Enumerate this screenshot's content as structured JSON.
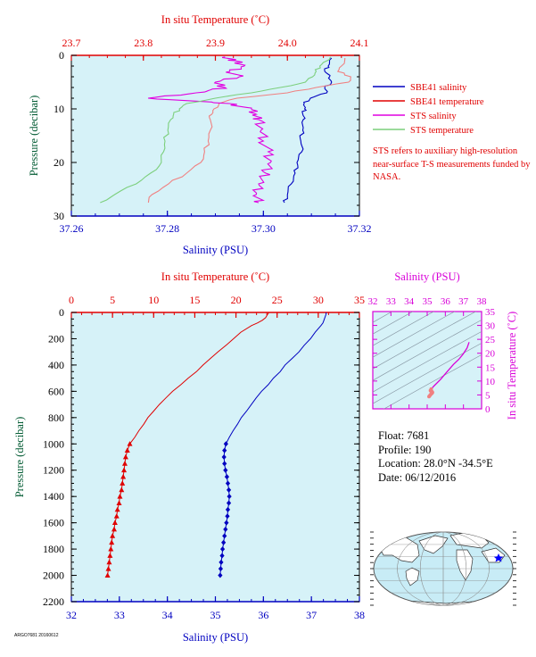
{
  "colors": {
    "temperature_red": "#e00000",
    "salinity_blue": "#0000c0",
    "salinity_magenta": "#d800d8",
    "pressure_green": "#005a32",
    "sts_salinity": "#e000e0",
    "sts_temperature": "#7ccf7c",
    "sbe_temperature_light": "#f08080",
    "plot_bg": "#d6f2f8"
  },
  "float_info": {
    "float": "Float:  7681",
    "profile": "Profile:  190",
    "location": "Location:  28.0°N  -34.5°E",
    "date": "Date:  06/12/2016"
  },
  "notice": "STS refers to auxiliary high-resolution near-surface T-S measurements funded by NASA.",
  "footer": "ARGO7681 20160612",
  "chart_data": [
    {
      "type": "line",
      "x_axis_bottom": {
        "label": "Salinity (PSU)",
        "range": [
          37.26,
          37.32
        ],
        "ticks": [
          "37.26",
          "37.28",
          "37.30",
          "37.32"
        ]
      },
      "x_axis_top": {
        "label": "In situ Temperature (˚C)",
        "range": [
          23.7,
          24.1
        ],
        "ticks": [
          "23.7",
          "23.8",
          "23.9",
          "24.0",
          "24.1"
        ]
      },
      "y_axis": {
        "label": "Pressure (decibar)",
        "range": [
          0,
          30
        ],
        "ticks": [
          "0",
          "10",
          "20",
          "30"
        ],
        "inverted": true
      },
      "legend": [
        {
          "label": "SBE41 salinity",
          "color": "#0000c0"
        },
        {
          "label": "SBE41 temperature",
          "color": "#e00000"
        },
        {
          "label": "STS salinity",
          "color": "#e000e0"
        },
        {
          "label": "STS temperature",
          "color": "#7ccf7c"
        }
      ],
      "legend_position": "right",
      "series": [
        {
          "name": "SBE41 salinity",
          "axis": "salinity",
          "pressure": [
            0.5,
            2,
            3,
            4,
            5,
            6,
            7,
            8,
            9,
            10,
            11,
            12,
            14,
            16,
            18,
            20,
            22,
            24,
            26,
            27.5
          ],
          "values": [
            37.3142,
            37.3135,
            37.3128,
            37.3138,
            37.3142,
            37.3128,
            37.3132,
            37.3098,
            37.3085,
            37.3086,
            37.3082,
            37.3083,
            37.3082,
            37.3078,
            37.308,
            37.307,
            37.3066,
            37.3058,
            37.305,
            37.3044
          ]
        },
        {
          "name": "SBE41 temperature",
          "axis": "temperature",
          "pressure": [
            0.5,
            2,
            3,
            4,
            5,
            6,
            7,
            8,
            9,
            10,
            11,
            12,
            14,
            16,
            18,
            20,
            22,
            24,
            26,
            27.5
          ],
          "values": [
            24.08,
            24.075,
            24.07,
            24.088,
            24.085,
            24.04,
            24.0,
            23.93,
            23.905,
            23.898,
            23.895,
            23.893,
            23.893,
            23.89,
            23.885,
            23.88,
            23.86,
            23.835,
            23.812,
            23.807
          ]
        },
        {
          "name": "STS salinity",
          "axis": "salinity",
          "pressure": [
            0.3,
            1,
            2,
            3,
            4,
            5,
            6,
            7,
            8,
            9,
            10,
            11,
            12,
            14,
            16,
            18,
            20,
            22,
            24,
            26,
            27.5
          ],
          "values": [
            37.292,
            37.294,
            37.296,
            37.293,
            37.295,
            37.29,
            37.292,
            37.286,
            37.276,
            37.293,
            37.2975,
            37.2985,
            37.299,
            37.2995,
            37.3,
            37.301,
            37.3015,
            37.3005,
            37.299,
            37.2985,
            37.299
          ]
        },
        {
          "name": "STS temperature",
          "axis": "temperature",
          "pressure": [
            0.3,
            1,
            2,
            3,
            4,
            5,
            6,
            7,
            8,
            9,
            10,
            11,
            12,
            14,
            16,
            18,
            20,
            22,
            24,
            26,
            27.5
          ],
          "values": [
            24.06,
            24.055,
            24.045,
            24.04,
            24.035,
            24.025,
            23.99,
            23.95,
            23.9,
            23.86,
            23.85,
            23.842,
            23.838,
            23.834,
            23.83,
            23.828,
            23.825,
            23.81,
            23.79,
            23.76,
            23.74
          ]
        }
      ]
    },
    {
      "type": "line",
      "x_axis_bottom": {
        "label": "Salinity (PSU)",
        "range": [
          32,
          38
        ],
        "ticks": [
          "32",
          "33",
          "34",
          "35",
          "36",
          "37",
          "38"
        ]
      },
      "x_axis_top": {
        "label": "In situ Temperature (˚C)",
        "range": [
          0,
          35
        ],
        "ticks": [
          "0",
          "5",
          "10",
          "15",
          "20",
          "25",
          "30",
          "35"
        ]
      },
      "y_axis": {
        "label": "Pressure (decibar)",
        "range": [
          0,
          2200
        ],
        "ticks": [
          "0",
          "200",
          "400",
          "600",
          "800",
          "1000",
          "1200",
          "1400",
          "1600",
          "1800",
          "2000",
          "2200"
        ],
        "inverted": true
      },
      "series": [
        {
          "name": "Salinity",
          "axis": "salinity",
          "marker": "diamond",
          "pressure": [
            0,
            20,
            40,
            60,
            80,
            100,
            150,
            200,
            250,
            300,
            350,
            400,
            450,
            500,
            550,
            600,
            650,
            700,
            750,
            800,
            850,
            900,
            950,
            1000,
            1050,
            1100,
            1150,
            1200,
            1250,
            1300,
            1350,
            1400,
            1450,
            1500,
            1550,
            1600,
            1650,
            1700,
            1750,
            1800,
            1850,
            1900,
            1950,
            2000
          ],
          "values": [
            37.31,
            37.3,
            37.28,
            37.26,
            37.24,
            37.2,
            37.08,
            36.98,
            36.85,
            36.74,
            36.6,
            36.45,
            36.35,
            36.21,
            36.1,
            35.96,
            35.85,
            35.75,
            35.65,
            35.54,
            35.46,
            35.37,
            35.29,
            35.22,
            35.19,
            35.18,
            35.19,
            35.21,
            35.24,
            35.26,
            35.28,
            35.29,
            35.28,
            35.26,
            35.25,
            35.23,
            35.21,
            35.19,
            35.17,
            35.15,
            35.14,
            35.12,
            35.11,
            35.1
          ],
          "markers_from_pressure": 1000
        },
        {
          "name": "Temperature",
          "axis": "temperature",
          "marker": "triangle",
          "pressure": [
            0,
            20,
            40,
            60,
            80,
            100,
            150,
            200,
            250,
            300,
            350,
            400,
            450,
            500,
            550,
            600,
            650,
            700,
            750,
            800,
            850,
            900,
            950,
            1000,
            1050,
            1100,
            1150,
            1200,
            1250,
            1300,
            1350,
            1400,
            1450,
            1500,
            1550,
            1600,
            1650,
            1700,
            1750,
            1800,
            1850,
            1900,
            1950,
            2000
          ],
          "values": [
            24.0,
            23.8,
            23.6,
            23.2,
            22.6,
            21.9,
            20.6,
            19.7,
            18.8,
            17.8,
            16.9,
            16.0,
            15.2,
            14.2,
            13.3,
            12.3,
            11.5,
            10.7,
            10.0,
            9.3,
            8.8,
            8.2,
            7.7,
            7.1,
            6.8,
            6.6,
            6.5,
            6.4,
            6.3,
            6.2,
            6.1,
            5.9,
            5.8,
            5.6,
            5.5,
            5.3,
            5.2,
            5.0,
            4.9,
            4.8,
            4.7,
            4.6,
            4.5,
            4.4
          ],
          "markers_from_pressure": 1000
        }
      ]
    },
    {
      "type": "scatter",
      "x_axis_top": {
        "label": "Salinity (PSU)",
        "range": [
          32,
          38
        ],
        "ticks": [
          "32",
          "33",
          "34",
          "35",
          "36",
          "37",
          "38"
        ]
      },
      "y_axis_right": {
        "label": "In situ Temperature (˚C)",
        "range": [
          0,
          35
        ],
        "ticks": [
          "0",
          "5",
          "10",
          "15",
          "20",
          "25",
          "30",
          "35"
        ]
      },
      "series": [
        {
          "name": "T-S curve",
          "x": [
            37.31,
            37.2,
            36.98,
            36.74,
            36.45,
            36.21,
            35.96,
            35.75,
            35.54,
            35.37,
            35.22,
            35.18,
            35.21,
            35.26,
            35.29,
            35.26,
            35.21,
            35.15,
            35.1
          ],
          "y": [
            24.0,
            21.9,
            19.7,
            17.8,
            16.0,
            14.2,
            12.3,
            10.7,
            9.3,
            8.2,
            7.1,
            6.6,
            6.4,
            6.2,
            5.9,
            5.6,
            5.3,
            4.8,
            4.4
          ]
        }
      ]
    }
  ]
}
